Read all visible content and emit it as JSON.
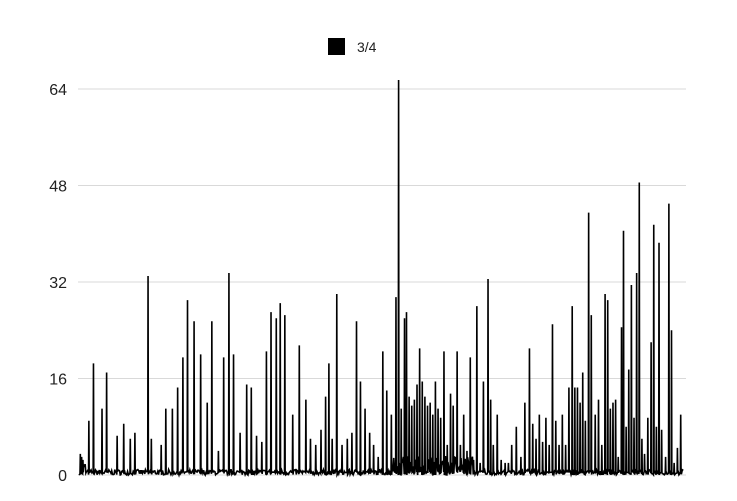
{
  "chart_data": {
    "type": "line",
    "title": "",
    "xlabel": "",
    "ylabel": "",
    "legend": {
      "position": "top-center"
    },
    "grid": true,
    "ylim": [
      0,
      64
    ],
    "yticks": [
      0,
      16,
      32,
      48,
      64
    ],
    "ytick_labels": [
      "0",
      "16",
      "32",
      "48",
      "64"
    ],
    "series": [
      {
        "name": "3/4",
        "color": "#000000",
        "peaks": [
          [
            0.2,
            3.5
          ],
          [
            0.4,
            3.0
          ],
          [
            0.6,
            2.5
          ],
          [
            1.5,
            9.0
          ],
          [
            2.2,
            18.5
          ],
          [
            3.5,
            11.0
          ],
          [
            4.2,
            17.0
          ],
          [
            5.8,
            6.5
          ],
          [
            6.8,
            8.5
          ],
          [
            7.8,
            6.0
          ],
          [
            8.5,
            7.0
          ],
          [
            10.5,
            33.0
          ],
          [
            11.0,
            6.0
          ],
          [
            12.5,
            5.0
          ],
          [
            13.2,
            11.0
          ],
          [
            14.2,
            11.0
          ],
          [
            15.0,
            14.5
          ],
          [
            15.8,
            19.5
          ],
          [
            16.5,
            29.0
          ],
          [
            17.5,
            25.5
          ],
          [
            18.5,
            20.0
          ],
          [
            19.5,
            12.0
          ],
          [
            20.2,
            25.5
          ],
          [
            21.2,
            4.0
          ],
          [
            22.0,
            19.5
          ],
          [
            22.8,
            33.5
          ],
          [
            23.5,
            20.0
          ],
          [
            24.5,
            7.0
          ],
          [
            25.5,
            15.0
          ],
          [
            26.2,
            14.5
          ],
          [
            27.0,
            6.5
          ],
          [
            27.8,
            5.5
          ],
          [
            28.5,
            20.5
          ],
          [
            29.2,
            27.0
          ],
          [
            30.0,
            26.0
          ],
          [
            30.6,
            28.5
          ],
          [
            31.3,
            26.5
          ],
          [
            32.5,
            10.0
          ],
          [
            33.5,
            21.5
          ],
          [
            34.5,
            12.5
          ],
          [
            35.2,
            6.0
          ],
          [
            36.0,
            5.0
          ],
          [
            36.8,
            7.5
          ],
          [
            37.5,
            13.0
          ],
          [
            38.0,
            18.5
          ],
          [
            38.5,
            6.0
          ],
          [
            39.2,
            30.0
          ],
          [
            40.0,
            5.0
          ],
          [
            40.8,
            6.0
          ],
          [
            41.5,
            7.0
          ],
          [
            42.2,
            25.5
          ],
          [
            42.8,
            15.5
          ],
          [
            43.5,
            11.0
          ],
          [
            44.2,
            7.0
          ],
          [
            44.8,
            5.0
          ],
          [
            45.5,
            3.0
          ],
          [
            46.2,
            20.5
          ],
          [
            46.8,
            14.0
          ],
          [
            47.5,
            10.0
          ],
          [
            48.2,
            29.5
          ],
          [
            48.6,
            65.5
          ],
          [
            49.0,
            11.0
          ],
          [
            49.5,
            26.0
          ],
          [
            49.8,
            27.0
          ],
          [
            50.2,
            13.0
          ],
          [
            50.6,
            11.5
          ],
          [
            51.0,
            12.5
          ],
          [
            51.4,
            15.0
          ],
          [
            51.8,
            21.0
          ],
          [
            52.2,
            15.5
          ],
          [
            52.6,
            13.0
          ],
          [
            53.0,
            11.5
          ],
          [
            53.4,
            12.0
          ],
          [
            53.8,
            10.0
          ],
          [
            54.2,
            15.5
          ],
          [
            54.6,
            11.0
          ],
          [
            55.0,
            9.5
          ],
          [
            55.5,
            20.5
          ],
          [
            56.0,
            5.0
          ],
          [
            56.5,
            13.5
          ],
          [
            56.9,
            11.5
          ],
          [
            57.5,
            20.5
          ],
          [
            58.0,
            5.0
          ],
          [
            58.5,
            10.0
          ],
          [
            59.0,
            4.0
          ],
          [
            59.5,
            19.5
          ],
          [
            60.0,
            2.5
          ],
          [
            60.5,
            28.0
          ],
          [
            61.0,
            2.0
          ],
          [
            61.5,
            15.5
          ],
          [
            62.2,
            32.5
          ],
          [
            62.6,
            12.5
          ],
          [
            63.0,
            5.0
          ],
          [
            63.6,
            10.0
          ],
          [
            64.2,
            2.5
          ],
          [
            64.8,
            2.0
          ],
          [
            65.3,
            2.0
          ],
          [
            65.8,
            5.0
          ],
          [
            66.5,
            8.0
          ],
          [
            67.2,
            3.0
          ],
          [
            67.8,
            12.0
          ],
          [
            68.5,
            21.0
          ],
          [
            69.0,
            8.5
          ],
          [
            69.5,
            6.0
          ],
          [
            70.0,
            10.0
          ],
          [
            70.5,
            5.5
          ],
          [
            71.0,
            9.5
          ],
          [
            71.5,
            5.0
          ],
          [
            72.0,
            25.0
          ],
          [
            72.5,
            9.0
          ],
          [
            73.0,
            5.0
          ],
          [
            73.5,
            10.0
          ],
          [
            74.0,
            5.0
          ],
          [
            74.5,
            14.5
          ],
          [
            75.0,
            28.0
          ],
          [
            75.4,
            14.5
          ],
          [
            75.8,
            14.5
          ],
          [
            76.2,
            12.0
          ],
          [
            76.6,
            17.0
          ],
          [
            77.0,
            9.0
          ],
          [
            77.5,
            43.5
          ],
          [
            77.9,
            26.5
          ],
          [
            78.5,
            10.0
          ],
          [
            79.0,
            12.5
          ],
          [
            79.5,
            5.0
          ],
          [
            80.0,
            30.0
          ],
          [
            80.4,
            29.0
          ],
          [
            80.8,
            11.0
          ],
          [
            81.2,
            12.0
          ],
          [
            81.6,
            12.5
          ],
          [
            82.0,
            3.0
          ],
          [
            82.5,
            24.5
          ],
          [
            82.8,
            40.5
          ],
          [
            83.2,
            8.0
          ],
          [
            83.6,
            17.5
          ],
          [
            84.0,
            31.5
          ],
          [
            84.4,
            9.5
          ],
          [
            84.8,
            33.5
          ],
          [
            85.2,
            48.5
          ],
          [
            85.6,
            6.0
          ],
          [
            86.0,
            3.5
          ],
          [
            86.5,
            9.5
          ],
          [
            87.0,
            22.0
          ],
          [
            87.4,
            41.5
          ],
          [
            87.8,
            8.0
          ],
          [
            88.2,
            38.5
          ],
          [
            88.6,
            7.5
          ],
          [
            89.2,
            3.0
          ],
          [
            89.7,
            45.0
          ],
          [
            90.1,
            24.0
          ],
          [
            90.5,
            2.0
          ],
          [
            91.0,
            4.5
          ],
          [
            91.5,
            10.0
          ]
        ]
      }
    ]
  }
}
